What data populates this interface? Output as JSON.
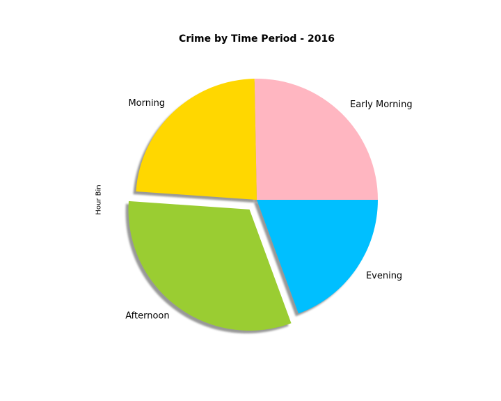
{
  "chart_data": {
    "type": "pie",
    "title": "Crime by Time Period - 2016",
    "ylabel": "Hour Bin",
    "start_angle_deg": 0,
    "direction": "counterclockwise",
    "shadow": true,
    "slices": [
      {
        "label": "Early Morning",
        "value": 25.3,
        "color": "#FFB6C1",
        "explode": 0
      },
      {
        "label": "Morning",
        "value": 23.6,
        "color": "#FFD700",
        "explode": 0
      },
      {
        "label": "Afternoon",
        "value": 31.7,
        "color": "#9ACD32",
        "explode": 0.1
      },
      {
        "label": "Evening",
        "value": 19.4,
        "color": "#00BFFF",
        "explode": 0
      }
    ]
  }
}
